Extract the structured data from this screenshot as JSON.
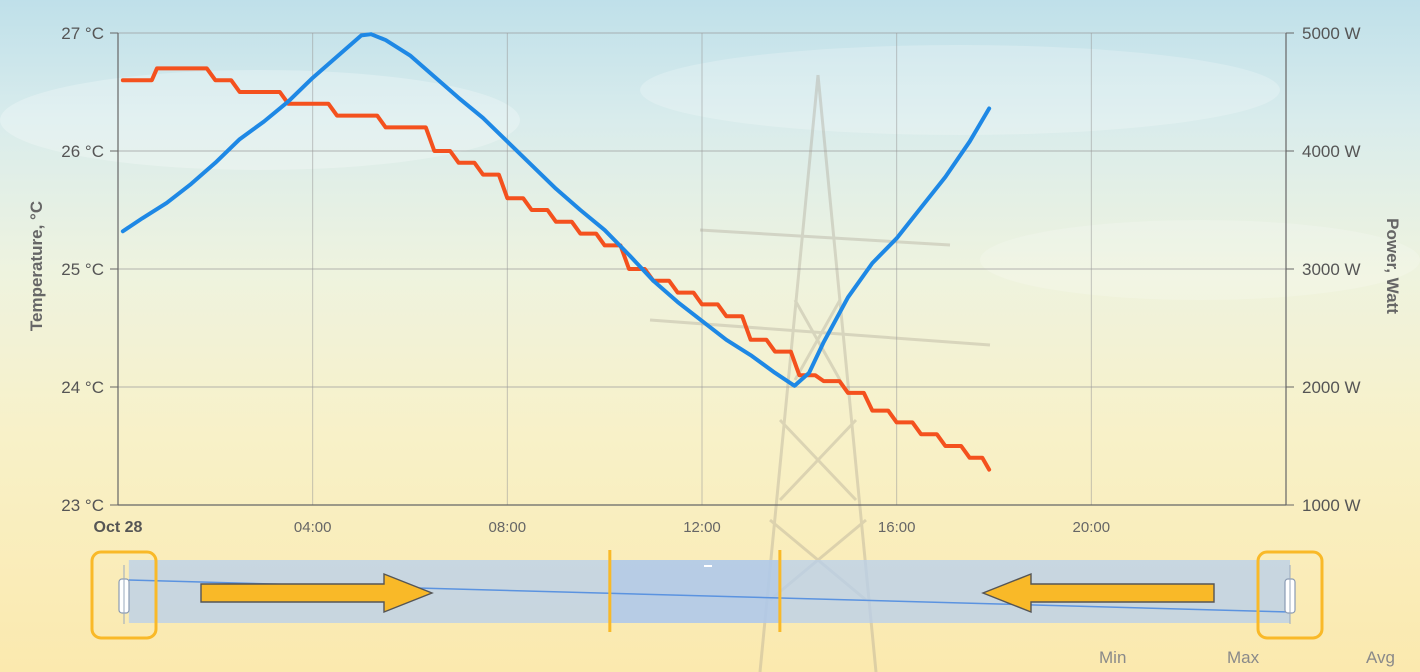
{
  "chart_data": {
    "type": "line",
    "ylabel_left": "Temperature, °C",
    "ylabel_right": "Power, Watt",
    "ylim_left": [
      23,
      27
    ],
    "ylim_right": [
      1000,
      5000
    ],
    "yticks_left": [
      "23 °C",
      "24 °C",
      "25 °C",
      "26 °C",
      "27 °C"
    ],
    "yticks_right": [
      "1000 W",
      "2000 W",
      "3000 W",
      "4000 W",
      "5000 W"
    ],
    "xticks": [
      "Oct 28",
      "04:00",
      "08:00",
      "12:00",
      "16:00",
      "20:00"
    ],
    "xlim_hours": [
      0,
      24
    ],
    "grid": true,
    "series": [
      {
        "axis": "left",
        "color": "#f4511e",
        "x": [
          0.1,
          0.5,
          0.8,
          1.0,
          1.5,
          2.0,
          2.5,
          3.0,
          3.5,
          4.0,
          4.5,
          5.0,
          5.5,
          6.0,
          6.5,
          7.0,
          7.5,
          8.0,
          8.5,
          9.0,
          9.5,
          10.0,
          10.5,
          11.0,
          11.5,
          12.0,
          12.5,
          13.0,
          13.5,
          14.0,
          14.5,
          15.0,
          15.5,
          16.0,
          16.5,
          17.0,
          17.5,
          17.9
        ],
        "values": [
          26.6,
          26.6,
          26.7,
          26.7,
          26.7,
          26.6,
          26.5,
          26.5,
          26.4,
          26.4,
          26.3,
          26.3,
          26.2,
          26.2,
          26.0,
          25.9,
          25.8,
          25.6,
          25.5,
          25.4,
          25.3,
          25.2,
          25.0,
          24.9,
          24.8,
          24.7,
          24.6,
          24.4,
          24.3,
          24.1,
          24.05,
          23.95,
          23.8,
          23.7,
          23.6,
          23.5,
          23.4,
          23.3
        ]
      },
      {
        "axis": "right",
        "color": "#1e88e5",
        "x": [
          0.1,
          0.5,
          1.0,
          1.5,
          2.0,
          2.5,
          3.0,
          3.5,
          4.0,
          4.5,
          5.0,
          5.2,
          5.5,
          6.0,
          6.5,
          7.0,
          7.5,
          8.0,
          8.5,
          9.0,
          9.5,
          10.0,
          10.5,
          11.0,
          11.5,
          12.0,
          12.5,
          13.0,
          13.5,
          13.9,
          14.2,
          14.5,
          15.0,
          15.5,
          16.0,
          16.5,
          17.0,
          17.5,
          17.9
        ],
        "values": [
          3320,
          3430,
          3560,
          3720,
          3900,
          4100,
          4250,
          4420,
          4620,
          4800,
          4980,
          4990,
          4940,
          4810,
          4630,
          4450,
          4280,
          4080,
          3880,
          3680,
          3500,
          3330,
          3120,
          2900,
          2720,
          2560,
          2400,
          2270,
          2120,
          2010,
          2120,
          2380,
          2760,
          3050,
          3260,
          3520,
          3780,
          4080,
          4360
        ]
      }
    ]
  },
  "navigator": {
    "range_start_hour": 0.1,
    "range_end_hour": 24,
    "highlight_start_hour": 10.0,
    "highlight_end_hour": 13.5
  },
  "footer": {
    "min_label": "Min",
    "max_label": "Max",
    "avg_label": "Avg"
  },
  "colors": {
    "accent": "#f9b928",
    "grid": "#999999",
    "navigator_fill": "#b7cfee"
  }
}
